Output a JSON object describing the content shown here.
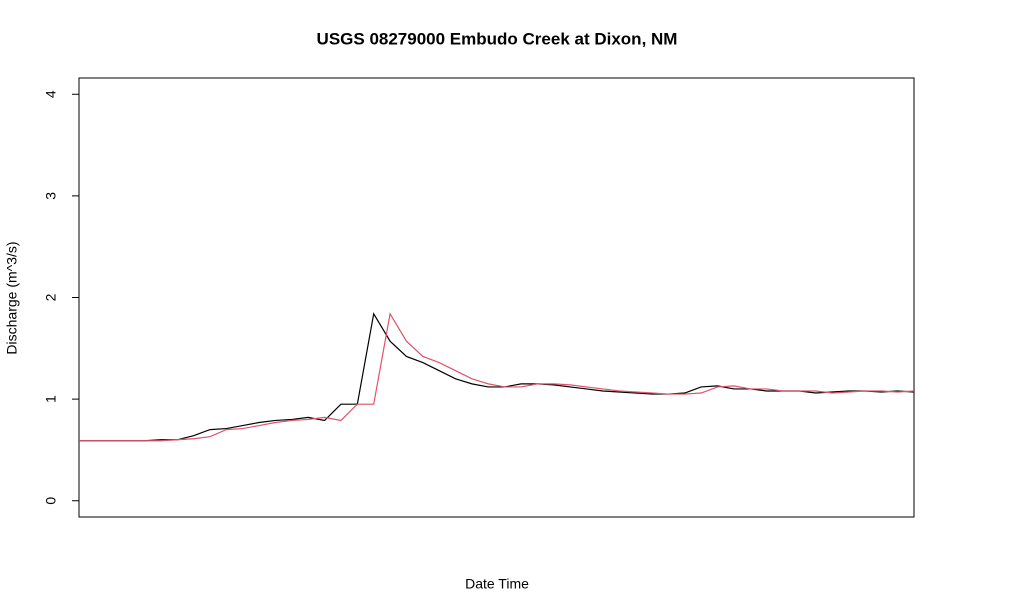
{
  "chart_data": {
    "type": "line",
    "title": "USGS 08279000 Embudo Creek at Dixon, NM",
    "x_label": "Date Time",
    "y_label": "Discharge (m^3/s)",
    "ylim": [
      -0.16,
      4.16
    ],
    "yticks": [
      0,
      1,
      2,
      3,
      4
    ],
    "series": [
      {
        "color": "#000000",
        "values": [
          0.59,
          0.59,
          0.59,
          0.59,
          0.59,
          0.6,
          0.6,
          0.64,
          0.7,
          0.71,
          0.74,
          0.77,
          0.79,
          0.8,
          0.82,
          0.79,
          0.95,
          0.95,
          1.84,
          1.57,
          1.42,
          1.36,
          1.28,
          1.2,
          1.15,
          1.12,
          1.12,
          1.15,
          1.15,
          1.14,
          1.12,
          1.1,
          1.08,
          1.07,
          1.06,
          1.05,
          1.05,
          1.06,
          1.12,
          1.13,
          1.1,
          1.1,
          1.08,
          1.08,
          1.08,
          1.06,
          1.07,
          1.08,
          1.08,
          1.07,
          1.08,
          1.07
        ]
      },
      {
        "color": "#df536b",
        "values": [
          0.59,
          0.59,
          0.59,
          0.59,
          0.59,
          0.59,
          0.6,
          0.61,
          0.63,
          0.7,
          0.71,
          0.74,
          0.77,
          0.79,
          0.8,
          0.82,
          0.79,
          0.95,
          0.95,
          1.84,
          1.57,
          1.42,
          1.36,
          1.28,
          1.2,
          1.15,
          1.12,
          1.12,
          1.15,
          1.15,
          1.14,
          1.12,
          1.1,
          1.08,
          1.07,
          1.06,
          1.05,
          1.05,
          1.06,
          1.12,
          1.13,
          1.1,
          1.1,
          1.08,
          1.08,
          1.08,
          1.06,
          1.07,
          1.08,
          1.08,
          1.07,
          1.08
        ]
      }
    ]
  }
}
